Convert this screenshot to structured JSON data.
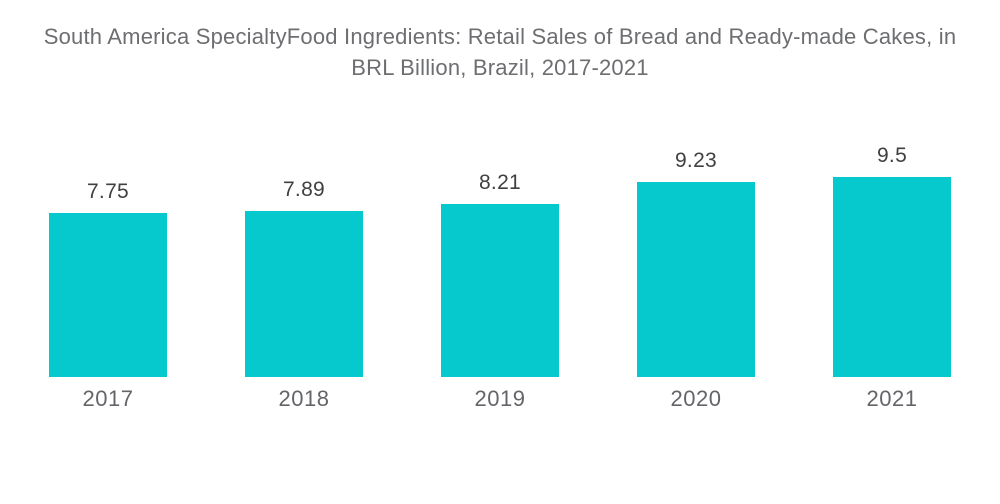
{
  "page": {
    "background": "#ffffff"
  },
  "title": {
    "lines": [
      "South America SpecialtyFood Ingredients: Retail Sales of Bread and Ready-made Cakes, in",
      "BRL Billion, Brazil, 2017-2021"
    ],
    "color": "#6d6e71"
  },
  "chart_data": {
    "type": "bar",
    "title": "South America SpecialtyFood Ingredients: Retail Sales of Bread and Ready-made Cakes, in BRL Billion, Brazil, 2017-2021",
    "categories": [
      "2017",
      "2018",
      "2019",
      "2020",
      "2021"
    ],
    "values": [
      7.75,
      7.89,
      8.21,
      9.23,
      9.5
    ],
    "value_labels": [
      "7.75",
      "7.89",
      "8.21",
      "9.23",
      "9.5"
    ],
    "xlabel": "",
    "ylabel": "",
    "ylim": [
      0,
      10
    ],
    "bar_color": "#06c9ce",
    "grid": false,
    "legend": "none",
    "axes_hidden": true,
    "value_label_position": "above-bar",
    "category_label_position": "below-bar"
  }
}
